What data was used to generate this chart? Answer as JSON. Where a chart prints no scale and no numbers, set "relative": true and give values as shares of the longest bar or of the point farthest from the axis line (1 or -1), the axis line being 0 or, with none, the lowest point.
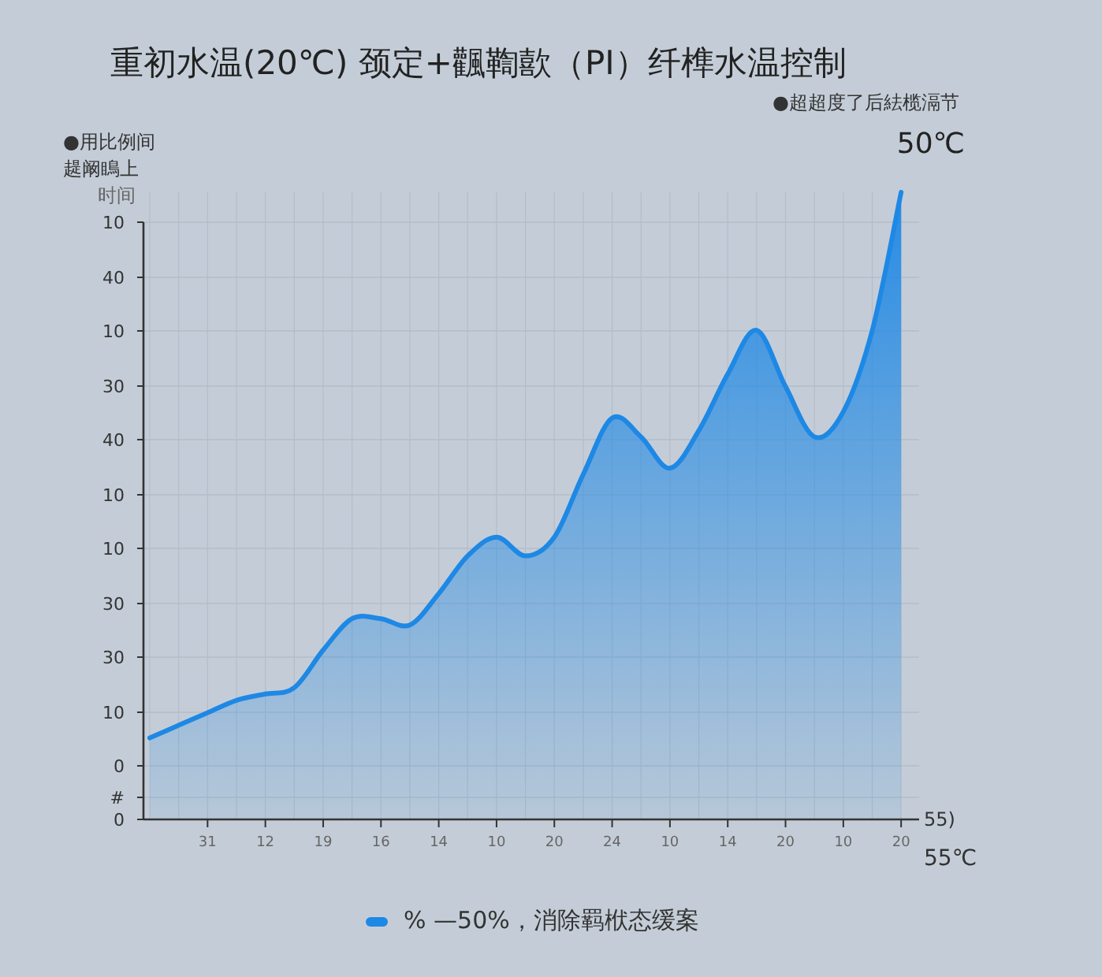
{
  "chart_data": {
    "type": "area",
    "title": "重初水温(20℃) 颈定+飌鞫歖（PI）纤榫水温控制",
    "ylabel": "时间",
    "xlabel": "55℃",
    "annotations": [
      "●超超度了后紶榄滆节",
      "50℃",
      "●用比例间",
      "趧阚瞗上",
      "55)",
      "0",
      "#",
      "0",
      "10",
      "30",
      "30",
      "10",
      "10",
      "40",
      "30",
      "10",
      "40",
      "10"
    ],
    "relative": true,
    "categories": [
      null,
      null,
      "31",
      null,
      "12",
      null,
      "19",
      null,
      "16",
      null,
      "14",
      null,
      "10",
      null,
      "20",
      null,
      "24",
      null,
      "10",
      null,
      "14",
      null,
      "20",
      null,
      "10",
      null,
      "20"
    ],
    "grid": true,
    "legend": "bottom",
    "series": [
      {
        "name": "% —50%，消除羁栿态缓案",
        "color": "#1e88e5",
        "values": [
          0.13,
          0.15,
          0.17,
          0.19,
          0.2,
          0.21,
          0.27,
          0.32,
          0.32,
          0.31,
          0.36,
          0.42,
          0.45,
          0.42,
          0.45,
          0.55,
          0.64,
          0.61,
          0.56,
          0.62,
          0.71,
          0.78,
          0.69,
          0.61,
          0.65,
          0.78,
          1
        ]
      }
    ]
  }
}
